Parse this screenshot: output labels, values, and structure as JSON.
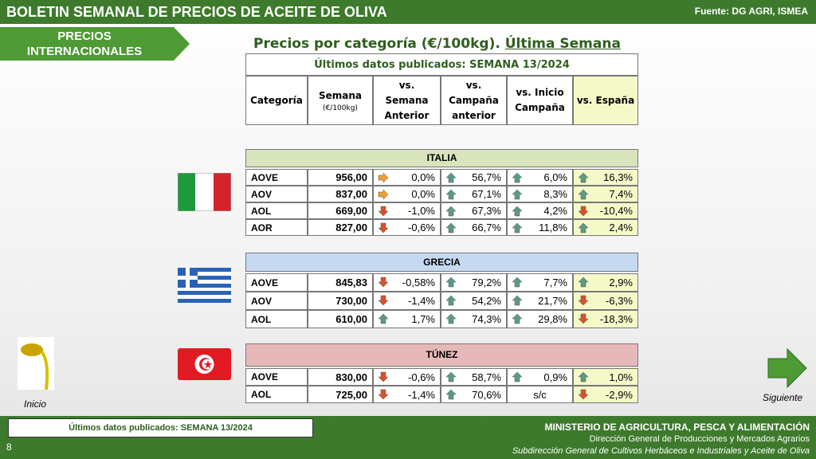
{
  "header": {
    "title": "BOLETIN SEMANAL DE PRECIOS DE ACEITE DE OLIVA",
    "source": "Fuente: DG AGRI, ISMEA"
  },
  "section_tab": [
    "PRECIOS",
    "INTERNACIONALES"
  ],
  "subtitle": {
    "text": "Precios por categoría (€/100kg). ",
    "emphasis": "Última Semana"
  },
  "table": {
    "banner": "Últimos datos publicados: SEMANA 13/2024",
    "headers": [
      "Categoría",
      "Semana",
      "vs.\nSemana\nAnterior",
      "vs.\nCampaña\nanterior",
      "vs. Inicio\nCampaña",
      "vs. España"
    ],
    "semana_unit": "(€/100kg)",
    "groups": [
      {
        "name": "ITALIA",
        "flag": "italy",
        "color": "#d8e4bc",
        "rows": [
          [
            "AOVE",
            "956,00",
            "0,0%",
            "56,7%",
            "6,0%",
            "16,3%"
          ],
          [
            "AOV",
            "837,00",
            "0,0%",
            "67,1%",
            "8,3%",
            "7,4%"
          ],
          [
            "AOL",
            "669,00",
            "-1,0%",
            "67,3%",
            "4,2%",
            "-10,4%"
          ],
          [
            "AOR",
            "827,00",
            "-0,6%",
            "66,7%",
            "11,8%",
            "2,4%"
          ]
        ],
        "arrows": [
          [
            "flat",
            "up",
            "up",
            "up"
          ],
          [
            "flat",
            "up",
            "up",
            "up"
          ],
          [
            "down",
            "up",
            "up",
            "down"
          ],
          [
            "down",
            "up",
            "up",
            "up"
          ]
        ]
      },
      {
        "name": "GRECIA",
        "flag": "greece",
        "color": "#c5d9f1",
        "rows": [
          [
            "AOVE",
            "845,83",
            "-0,58%",
            "79,2%",
            "7,7%",
            "2,9%"
          ],
          [
            "AOV",
            "730,00",
            "-1,4%",
            "54,2%",
            "21,7%",
            "-6,3%"
          ],
          [
            "AOL",
            "610,00",
            "1,7%",
            "74,3%",
            "29,8%",
            "-18,3%"
          ]
        ],
        "arrows": [
          [
            "down",
            "up",
            "up",
            "up"
          ],
          [
            "down",
            "up",
            "up",
            "down"
          ],
          [
            "up",
            "up",
            "up",
            "down"
          ]
        ]
      },
      {
        "name": "TÚNEZ",
        "flag": "tunisia",
        "color": "#e6b9b8",
        "rows": [
          [
            "AOVE",
            "830,00",
            "-0,6%",
            "58,7%",
            "0,9%",
            "1,0%"
          ],
          [
            "AOL",
            "725,00",
            "-1,4%",
            "70,6%",
            "s/c",
            "-2,9%"
          ]
        ],
        "arrows": [
          [
            "down",
            "up",
            "up",
            "up"
          ],
          [
            "down",
            "up",
            "none",
            "down"
          ]
        ]
      }
    ]
  },
  "nav": {
    "home": "Inicio",
    "next": "Siguiente"
  },
  "footer": {
    "banner": "Últimos datos publicados: SEMANA 13/2024",
    "page": "8",
    "ministry": "MINISTERIO DE AGRICULTURA, PESCA Y ALIMENTACIÓN",
    "directorate": "Dirección General de Producciones y Mercados Agrarios",
    "subdirectorate": "Subdirección General de Cultivos Herbáceos e Industriales y Aceite de Oliva"
  }
}
